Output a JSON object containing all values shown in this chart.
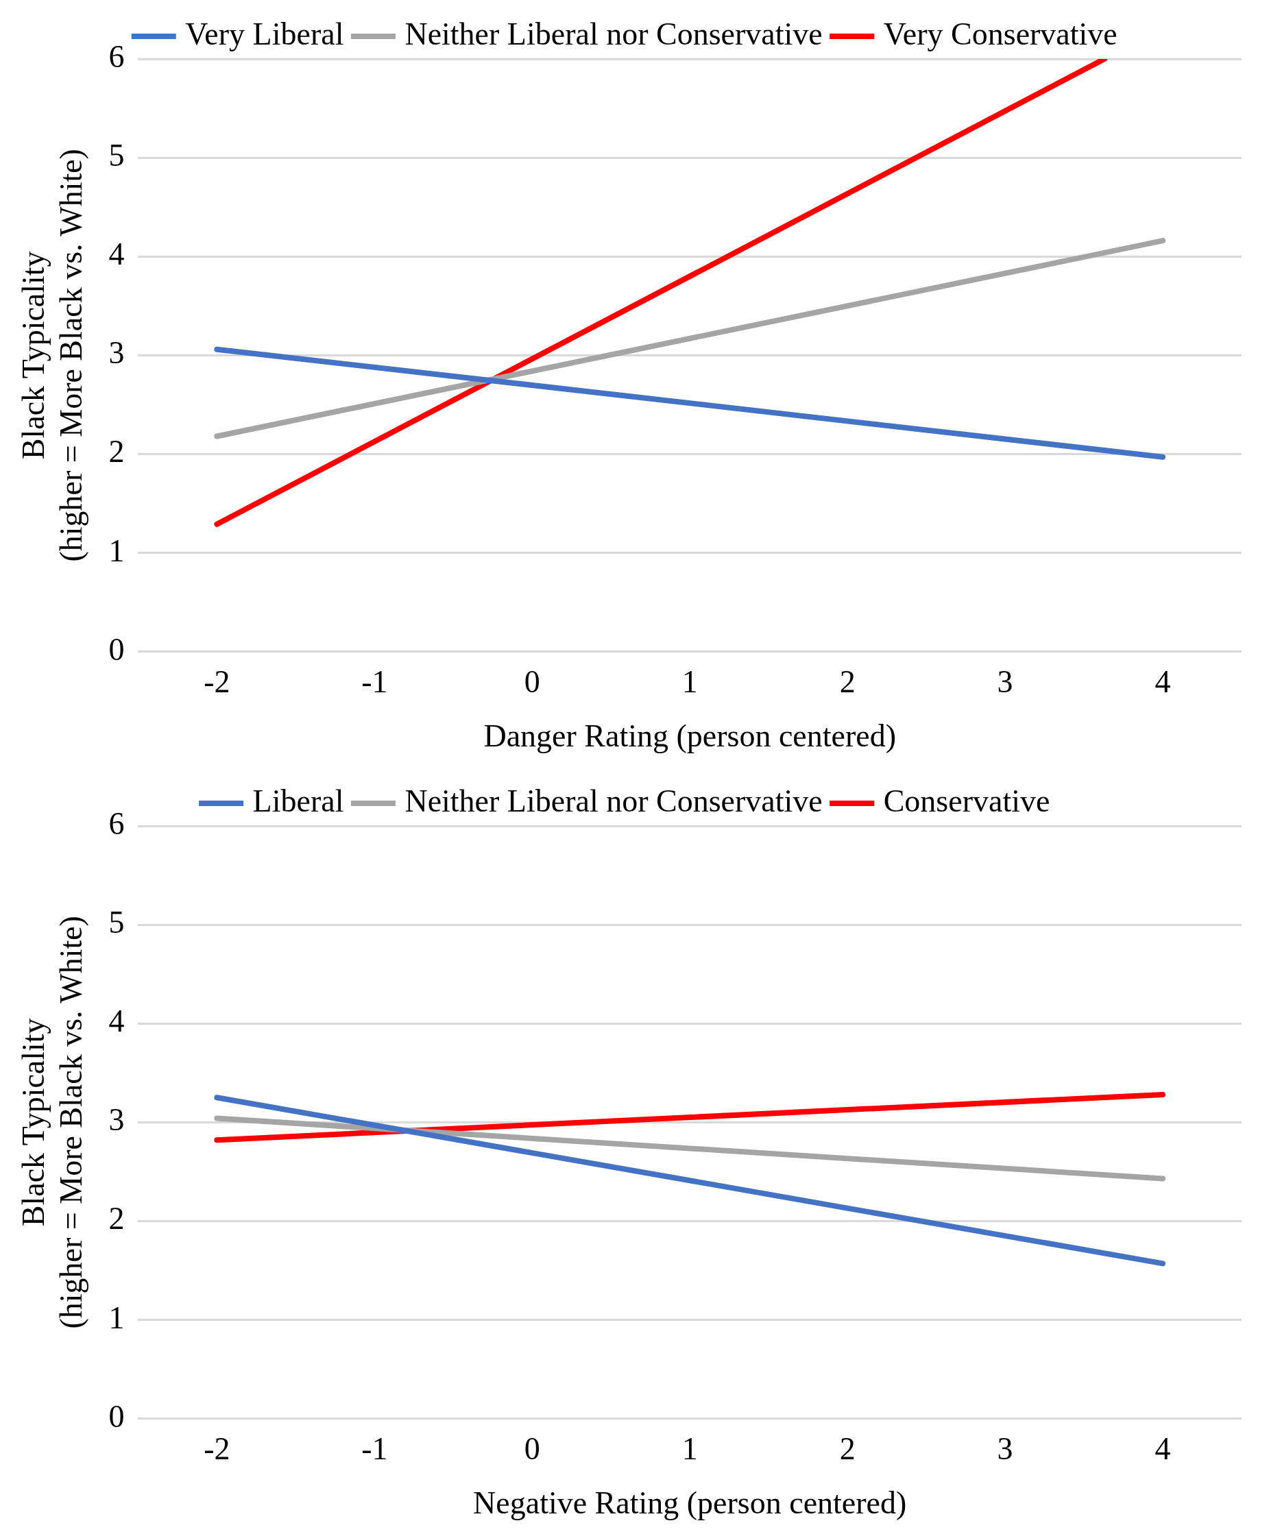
{
  "chart_data": [
    {
      "type": "line",
      "xlabel": "Danger Rating (person centered)",
      "ylabel": "Black Typicality\n(higher = More Black vs. White)",
      "xlim": [
        -2.5,
        4.5
      ],
      "xticks": [
        -2,
        -1,
        0,
        1,
        2,
        3,
        4
      ],
      "ylim": [
        0,
        6
      ],
      "yticks": [
        0,
        1,
        2,
        3,
        4,
        5,
        6
      ],
      "grid": "y",
      "legend": "top",
      "series": [
        {
          "name": "Very Liberal",
          "color": "#4472c4",
          "x": [
            -2,
            4
          ],
          "values": [
            3.06,
            1.97
          ]
        },
        {
          "name": "Neither Liberal nor Conservative",
          "color": "#a5a5a5",
          "x": [
            -2,
            4
          ],
          "values": [
            2.18,
            4.16
          ]
        },
        {
          "name": "Very Conservative",
          "color": "#ff0000",
          "x": [
            -2,
            3.63
          ],
          "values": [
            1.29,
            6
          ]
        }
      ]
    },
    {
      "type": "line",
      "xlabel": "Negative Rating (person centered)",
      "ylabel": "Black Typicality\n(higher = More Black vs. White)",
      "xlim": [
        -2.5,
        4.5
      ],
      "xticks": [
        -2,
        -1,
        0,
        1,
        2,
        3,
        4
      ],
      "ylim": [
        0,
        6
      ],
      "yticks": [
        0,
        1,
        2,
        3,
        4,
        5,
        6
      ],
      "grid": "y",
      "legend": "top",
      "series": [
        {
          "name": "Liberal",
          "color": "#4472c4",
          "x": [
            -2,
            4
          ],
          "values": [
            3.25,
            1.57
          ]
        },
        {
          "name": "Neither Liberal nor Conservative",
          "color": "#a5a5a5",
          "x": [
            -2,
            4
          ],
          "values": [
            3.04,
            2.43
          ]
        },
        {
          "name": "Conservative",
          "color": "#ff0000",
          "x": [
            -2,
            4
          ],
          "values": [
            2.82,
            3.28
          ]
        }
      ]
    }
  ]
}
